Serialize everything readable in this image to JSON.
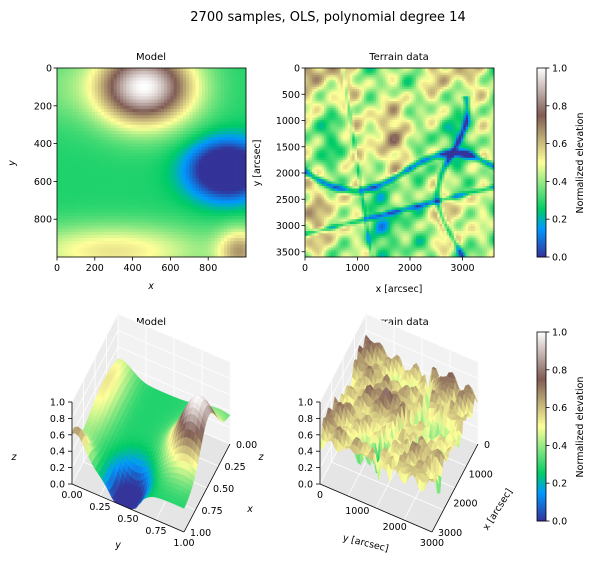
{
  "figure": {
    "suptitle": "2700 samples, OLS, polynomial degree 14"
  },
  "colormap": {
    "name": "terrain",
    "stops": [
      [
        0.0,
        "#333399"
      ],
      [
        0.15,
        "#0099ff"
      ],
      [
        0.25,
        "#00cc66"
      ],
      [
        0.5,
        "#ffff99"
      ],
      [
        0.75,
        "#805c54"
      ],
      [
        1.0,
        "#ffffff"
      ]
    ]
  },
  "chart_data": [
    {
      "type": "heatmap",
      "title": "Model",
      "xlabel": "x",
      "ylabel": "y",
      "xlim": [
        0,
        1000
      ],
      "ylim": [
        1000,
        0
      ],
      "xticks": [
        0,
        200,
        400,
        600,
        800
      ],
      "yticks": [
        0,
        200,
        400,
        600,
        800
      ],
      "value_range": [
        0.0,
        1.0
      ]
    },
    {
      "type": "heatmap",
      "title": "Terrain data",
      "xlabel": "x [arcsec]",
      "ylabel": "y [arcsec]",
      "xlim": [
        0,
        3600
      ],
      "ylim": [
        3600,
        0
      ],
      "xticks": [
        0,
        1000,
        2000,
        3000
      ],
      "yticks": [
        0,
        500,
        1000,
        1500,
        2000,
        2500,
        3000,
        3500
      ],
      "value_range": [
        0.0,
        1.0
      ]
    },
    {
      "type": "colorbar",
      "label": "Normalized elevation",
      "ticks": [
        0.0,
        0.2,
        0.4,
        0.6,
        0.8,
        1.0
      ],
      "tick_labels": [
        "0.0",
        "0.2",
        "0.4",
        "0.6",
        "0.8",
        "1.0"
      ]
    },
    {
      "type": "surface3d",
      "title": "Model",
      "xlabel": "x",
      "ylabel": "y",
      "zlabel": "z",
      "x_tick_labels": [
        "0.00",
        "0.25",
        "0.50",
        "0.75",
        "1.00"
      ],
      "y_tick_labels": [
        "0.00",
        "0.25",
        "0.50",
        "0.75",
        "1.00"
      ],
      "z_tick_labels": [
        "0.0",
        "0.2",
        "0.4",
        "0.6",
        "0.8",
        "1.0"
      ],
      "zlim": [
        0,
        1
      ]
    },
    {
      "type": "surface3d",
      "title": "Terrain data",
      "xlabel": "x [arcsec]",
      "ylabel": "y [arcsec]",
      "zlabel": "",
      "x_tick_labels": [
        "0",
        "1000",
        "2000",
        "3000"
      ],
      "y_tick_labels": [
        "0",
        "1000",
        "2000",
        "3000"
      ],
      "z_tick_labels": [
        "0.0",
        "0.2",
        "0.4",
        "0.6",
        "0.8",
        "1.0"
      ],
      "zlim": [
        0,
        1
      ]
    },
    {
      "type": "colorbar",
      "label": "Normalized elevation",
      "ticks": [
        0.0,
        0.2,
        0.4,
        0.6,
        0.8,
        1.0
      ],
      "tick_labels": [
        "0.0",
        "0.2",
        "0.4",
        "0.6",
        "0.8",
        "1.0"
      ]
    }
  ]
}
